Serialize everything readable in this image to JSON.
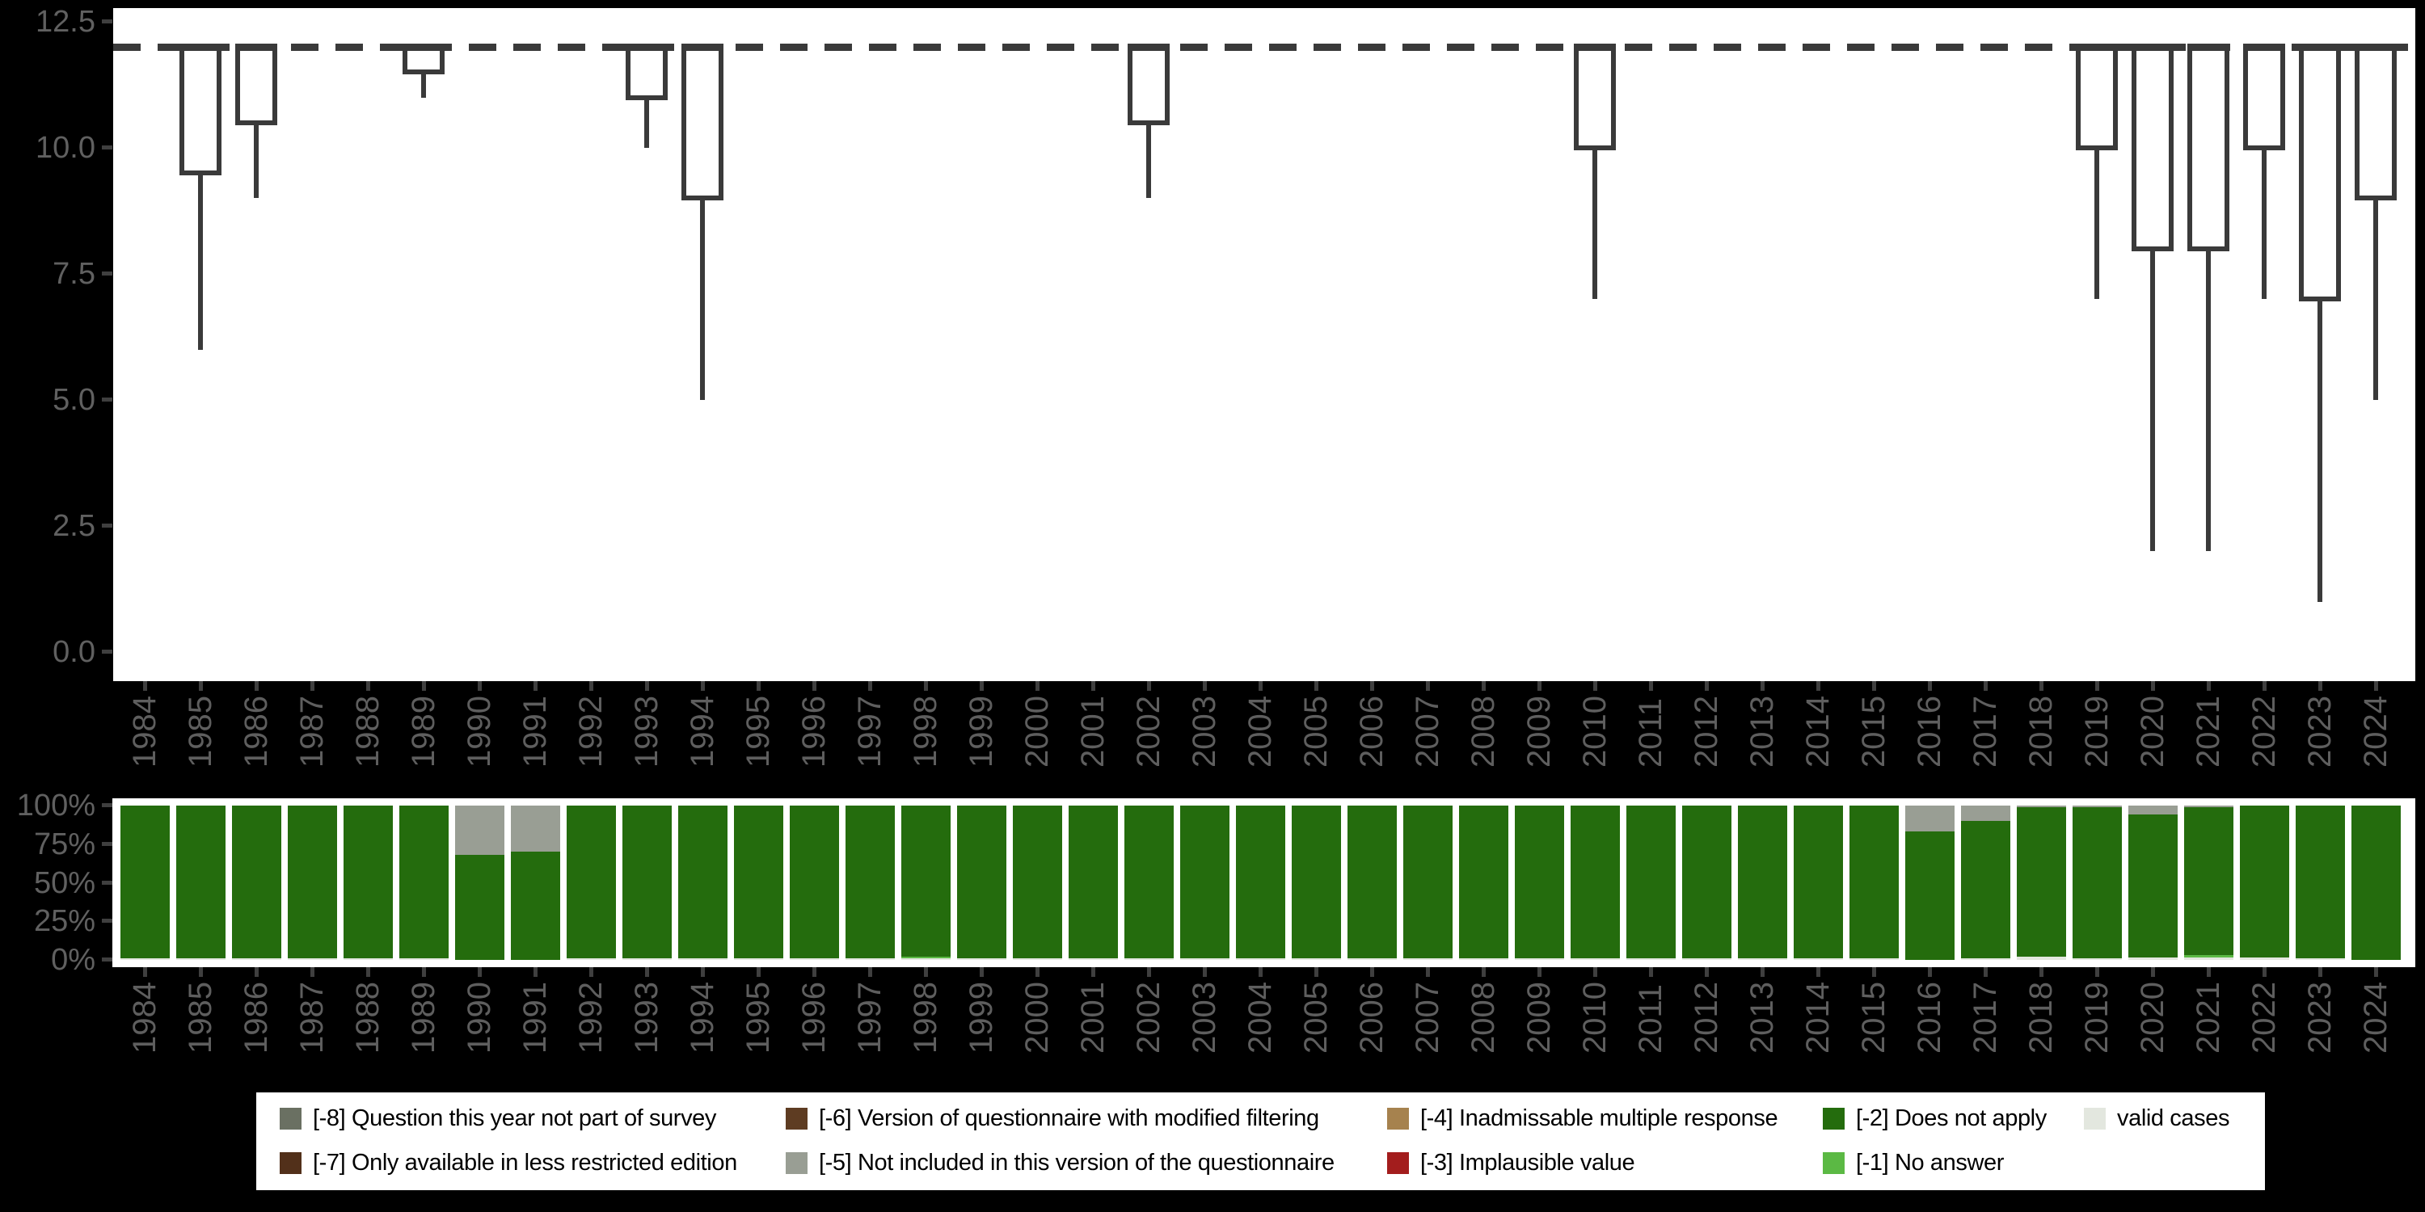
{
  "page": {
    "background": "#000000",
    "panel_background": "#ffffff"
  },
  "style": {
    "box_stroke": "#3a3a3a",
    "axis_text_color": "#5e5e5e",
    "tick_color": "#3f3f3f"
  },
  "chart_data": [
    {
      "id": "top-boxplot",
      "type": "boxplot",
      "title": "",
      "xlabel": "",
      "ylabel": "",
      "ylim": [
        0,
        12.5
      ],
      "grid": false,
      "y_ticks": [
        {
          "label": "12.5",
          "value": 12.5
        },
        {
          "label": "10.0",
          "value": 10.0
        },
        {
          "label": "7.5",
          "value": 7.5
        },
        {
          "label": "5.0",
          "value": 5.0
        },
        {
          "label": "2.5",
          "value": 2.5
        },
        {
          "label": "0.0",
          "value": 0.0
        }
      ],
      "reference_line": {
        "value": 12,
        "style": "dashed"
      },
      "years": [
        1984,
        1985,
        1986,
        1987,
        1988,
        1989,
        1990,
        1991,
        1992,
        1993,
        1994,
        1995,
        1996,
        1997,
        1998,
        1999,
        2000,
        2001,
        2002,
        2003,
        2004,
        2005,
        2006,
        2007,
        2008,
        2009,
        2010,
        2011,
        2012,
        2013,
        2014,
        2015,
        2016,
        2017,
        2018,
        2019,
        2020,
        2021,
        2022,
        2023,
        2024
      ],
      "boxes": [
        {
          "year": 1985,
          "q3": 12,
          "median": 12,
          "q1": 9.5,
          "whisker_low": 6
        },
        {
          "year": 1986,
          "q3": 12,
          "median": 12,
          "q1": 10.5,
          "whisker_low": 9
        },
        {
          "year": 1989,
          "q3": 12,
          "median": 12,
          "q1": 11.5,
          "whisker_low": 11
        },
        {
          "year": 1993,
          "q3": 12,
          "median": 12,
          "q1": 11,
          "whisker_low": 10
        },
        {
          "year": 1994,
          "q3": 12,
          "median": 12,
          "q1": 9,
          "whisker_low": 5
        },
        {
          "year": 2002,
          "q3": 12,
          "median": 12,
          "q1": 10.5,
          "whisker_low": 9
        },
        {
          "year": 2010,
          "q3": 12,
          "median": 12,
          "q1": 10,
          "whisker_low": 7
        },
        {
          "year": 2019,
          "q3": 12,
          "median": 12,
          "q1": 10,
          "whisker_low": 7
        },
        {
          "year": 2020,
          "q3": 12,
          "median": 12,
          "q1": 8,
          "whisker_low": 2
        },
        {
          "year": 2021,
          "q3": 12,
          "median": 12,
          "q1": 8,
          "whisker_low": 2
        },
        {
          "year": 2022,
          "q3": 12,
          "median": 12,
          "q1": 10,
          "whisker_low": 7
        },
        {
          "year": 2023,
          "q3": 12,
          "median": 12,
          "q1": 7,
          "whisker_low": 1
        },
        {
          "year": 2024,
          "q3": 12,
          "median": 12,
          "q1": 9,
          "whisker_low": 5
        }
      ]
    },
    {
      "id": "bottom-stacked-bars",
      "type": "bar",
      "subtype": "stacked_percent",
      "title": "",
      "xlabel": "",
      "ylabel": "",
      "ylim": [
        0,
        100
      ],
      "y_ticks": [
        {
          "label": "100%",
          "value": 100
        },
        {
          "label": "75%",
          "value": 75
        },
        {
          "label": "50%",
          "value": 50
        },
        {
          "label": "25%",
          "value": 25
        },
        {
          "label": "0%",
          "value": 0
        }
      ],
      "years": [
        1984,
        1985,
        1986,
        1987,
        1988,
        1989,
        1990,
        1991,
        1992,
        1993,
        1994,
        1995,
        1996,
        1997,
        1998,
        1999,
        2000,
        2001,
        2002,
        2003,
        2004,
        2005,
        2006,
        2007,
        2008,
        2009,
        2010,
        2011,
        2012,
        2013,
        2014,
        2015,
        2016,
        2017,
        2018,
        2019,
        2020,
        2021,
        2022,
        2023,
        2024
      ],
      "segment_order_bottom_to_top": [
        "valid",
        "-1",
        "-2",
        "-3",
        "-4",
        "-5",
        "-6",
        "-7",
        "-8"
      ],
      "bars": [
        {
          "year": 1984,
          "segments": [
            [
              "valid",
              1
            ],
            [
              "-2",
              99
            ]
          ]
        },
        {
          "year": 1985,
          "segments": [
            [
              "valid",
              1
            ],
            [
              "-2",
              99
            ]
          ]
        },
        {
          "year": 1986,
          "segments": [
            [
              "valid",
              1
            ],
            [
              "-2",
              99
            ]
          ]
        },
        {
          "year": 1987,
          "segments": [
            [
              "valid",
              1
            ],
            [
              "-2",
              99
            ]
          ]
        },
        {
          "year": 1988,
          "segments": [
            [
              "valid",
              1
            ],
            [
              "-2",
              99
            ]
          ]
        },
        {
          "year": 1989,
          "segments": [
            [
              "valid",
              1
            ],
            [
              "-2",
              99
            ]
          ]
        },
        {
          "year": 1990,
          "segments": [
            [
              "-2",
              68
            ],
            [
              "-5",
              32
            ]
          ]
        },
        {
          "year": 1991,
          "segments": [
            [
              "-2",
              70
            ],
            [
              "-5",
              30
            ]
          ]
        },
        {
          "year": 1992,
          "segments": [
            [
              "valid",
              1
            ],
            [
              "-2",
              99
            ]
          ]
        },
        {
          "year": 1993,
          "segments": [
            [
              "valid",
              1
            ],
            [
              "-2",
              99
            ]
          ]
        },
        {
          "year": 1994,
          "segments": [
            [
              "valid",
              1
            ],
            [
              "-2",
              99
            ]
          ]
        },
        {
          "year": 1995,
          "segments": [
            [
              "valid",
              1
            ],
            [
              "-2",
              99
            ]
          ]
        },
        {
          "year": 1996,
          "segments": [
            [
              "valid",
              1
            ],
            [
              "-2",
              99
            ]
          ]
        },
        {
          "year": 1997,
          "segments": [
            [
              "valid",
              1
            ],
            [
              "-2",
              99
            ]
          ]
        },
        {
          "year": 1998,
          "segments": [
            [
              "valid",
              1
            ],
            [
              "-1",
              1
            ],
            [
              "-2",
              98
            ]
          ]
        },
        {
          "year": 1999,
          "segments": [
            [
              "valid",
              1
            ],
            [
              "-2",
              99
            ]
          ]
        },
        {
          "year": 2000,
          "segments": [
            [
              "valid",
              1
            ],
            [
              "-2",
              99
            ]
          ]
        },
        {
          "year": 2001,
          "segments": [
            [
              "valid",
              1
            ],
            [
              "-2",
              99
            ]
          ]
        },
        {
          "year": 2002,
          "segments": [
            [
              "valid",
              1
            ],
            [
              "-2",
              99
            ]
          ]
        },
        {
          "year": 2003,
          "segments": [
            [
              "valid",
              1
            ],
            [
              "-2",
              99
            ]
          ]
        },
        {
          "year": 2004,
          "segments": [
            [
              "valid",
              1
            ],
            [
              "-2",
              99
            ]
          ]
        },
        {
          "year": 2005,
          "segments": [
            [
              "valid",
              1
            ],
            [
              "-2",
              99
            ]
          ]
        },
        {
          "year": 2006,
          "segments": [
            [
              "valid",
              1
            ],
            [
              "-2",
              99
            ]
          ]
        },
        {
          "year": 2007,
          "segments": [
            [
              "valid",
              1
            ],
            [
              "-2",
              99
            ]
          ]
        },
        {
          "year": 2008,
          "segments": [
            [
              "valid",
              1
            ],
            [
              "-2",
              99
            ]
          ]
        },
        {
          "year": 2009,
          "segments": [
            [
              "valid",
              1
            ],
            [
              "-2",
              99
            ]
          ]
        },
        {
          "year": 2010,
          "segments": [
            [
              "valid",
              1
            ],
            [
              "-2",
              99
            ]
          ]
        },
        {
          "year": 2011,
          "segments": [
            [
              "valid",
              1
            ],
            [
              "-2",
              99
            ]
          ]
        },
        {
          "year": 2012,
          "segments": [
            [
              "valid",
              1
            ],
            [
              "-2",
              99
            ]
          ]
        },
        {
          "year": 2013,
          "segments": [
            [
              "valid",
              1
            ],
            [
              "-2",
              99
            ]
          ]
        },
        {
          "year": 2014,
          "segments": [
            [
              "valid",
              1
            ],
            [
              "-2",
              99
            ]
          ]
        },
        {
          "year": 2015,
          "segments": [
            [
              "valid",
              1
            ],
            [
              "-2",
              99
            ]
          ]
        },
        {
          "year": 2016,
          "segments": [
            [
              "-2",
              83
            ],
            [
              "-5",
              17
            ]
          ]
        },
        {
          "year": 2017,
          "segments": [
            [
              "valid",
              1
            ],
            [
              "-2",
              89
            ],
            [
              "-5",
              10
            ]
          ]
        },
        {
          "year": 2018,
          "segments": [
            [
              "valid",
              2
            ],
            [
              "-2",
              97
            ],
            [
              "-5",
              1
            ]
          ]
        },
        {
          "year": 2019,
          "segments": [
            [
              "valid",
              1
            ],
            [
              "-2",
              98
            ],
            [
              "-5",
              1
            ]
          ]
        },
        {
          "year": 2020,
          "segments": [
            [
              "valid",
              1.5
            ],
            [
              "-2",
              92.5
            ],
            [
              "-5",
              6
            ]
          ]
        },
        {
          "year": 2021,
          "segments": [
            [
              "valid",
              1.5
            ],
            [
              "-1",
              1.5
            ],
            [
              "-2",
              96
            ],
            [
              "-5",
              1
            ]
          ]
        },
        {
          "year": 2022,
          "segments": [
            [
              "valid",
              1.5
            ],
            [
              "-2",
              98.5
            ]
          ]
        },
        {
          "year": 2023,
          "segments": [
            [
              "valid",
              1
            ],
            [
              "-2",
              99
            ]
          ]
        },
        {
          "year": 2024,
          "segments": [
            [
              "-2",
              100
            ]
          ]
        }
      ]
    }
  ],
  "legend": {
    "items": [
      {
        "code": "-8",
        "label": "[-8] Question this year not part of survey",
        "color": "#6a7062"
      },
      {
        "code": "-7",
        "label": "[-7] Only available in less restricted edition",
        "color": "#52301a"
      },
      {
        "code": "-6",
        "label": "[-6] Version of questionnaire with modified filtering",
        "color": "#5e3c22"
      },
      {
        "code": "-5",
        "label": "[-5] Not included in this version of the questionnaire",
        "color": "#999e94"
      },
      {
        "code": "-4",
        "label": "[-4] Inadmissable multiple response",
        "color": "#a6824e"
      },
      {
        "code": "-3",
        "label": "[-3] Implausible value",
        "color": "#a31d1d"
      },
      {
        "code": "-2",
        "label": "[-2] Does not apply",
        "color": "#246c0d"
      },
      {
        "code": "-1",
        "label": "[-1] No answer",
        "color": "#5bb944"
      },
      {
        "code": "valid",
        "label": "valid cases",
        "color": "#e3e7df"
      }
    ],
    "columns": [
      [
        "-8",
        "-7"
      ],
      [
        "-6",
        "-5"
      ],
      [
        "-4",
        "-3"
      ],
      [
        "-2",
        "-1"
      ],
      [
        "valid"
      ]
    ]
  }
}
